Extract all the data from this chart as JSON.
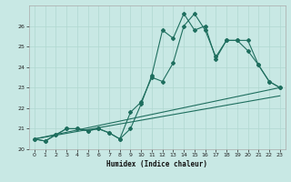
{
  "xlabel": "Humidex (Indice chaleur)",
  "background_color": "#c8e8e4",
  "plot_bg_color": "#c8e8e4",
  "line_color": "#1e6e5e",
  "grid_color": "#b0d8d0",
  "xlim": [
    -0.5,
    23.5
  ],
  "ylim": [
    20,
    27
  ],
  "x_ticks": [
    0,
    1,
    2,
    3,
    4,
    5,
    6,
    7,
    8,
    9,
    10,
    11,
    12,
    13,
    14,
    15,
    16,
    17,
    18,
    19,
    20,
    21,
    22,
    23
  ],
  "y_ticks": [
    20,
    21,
    22,
    23,
    24,
    25,
    26
  ],
  "series": [
    {
      "x": [
        0,
        1,
        2,
        3,
        4,
        5,
        6,
        7,
        8,
        9,
        10,
        11,
        12,
        13,
        14,
        15,
        16,
        17,
        18,
        19,
        20,
        21,
        22,
        23
      ],
      "y": [
        20.5,
        20.4,
        20.7,
        21.0,
        21.0,
        20.9,
        21.0,
        20.8,
        20.5,
        21.8,
        22.3,
        23.5,
        23.3,
        24.2,
        26.0,
        26.6,
        25.8,
        24.5,
        25.3,
        25.3,
        24.8,
        24.1,
        23.3,
        23.0
      ]
    },
    {
      "x": [
        0,
        1,
        2,
        3,
        4,
        5,
        6,
        7,
        8,
        9,
        10,
        11,
        12,
        13,
        14,
        15,
        16,
        17,
        18,
        19,
        20,
        21,
        22,
        23
      ],
      "y": [
        20.5,
        20.4,
        20.7,
        21.0,
        21.0,
        20.9,
        21.0,
        20.8,
        20.5,
        21.0,
        22.2,
        23.6,
        25.8,
        25.4,
        26.6,
        25.8,
        26.0,
        24.4,
        25.3,
        25.3,
        25.3,
        24.1,
        23.3,
        23.0
      ]
    },
    {
      "x": [
        0,
        23
      ],
      "y": [
        20.5,
        23.0
      ]
    },
    {
      "x": [
        0,
        23
      ],
      "y": [
        20.5,
        22.6
      ]
    }
  ]
}
